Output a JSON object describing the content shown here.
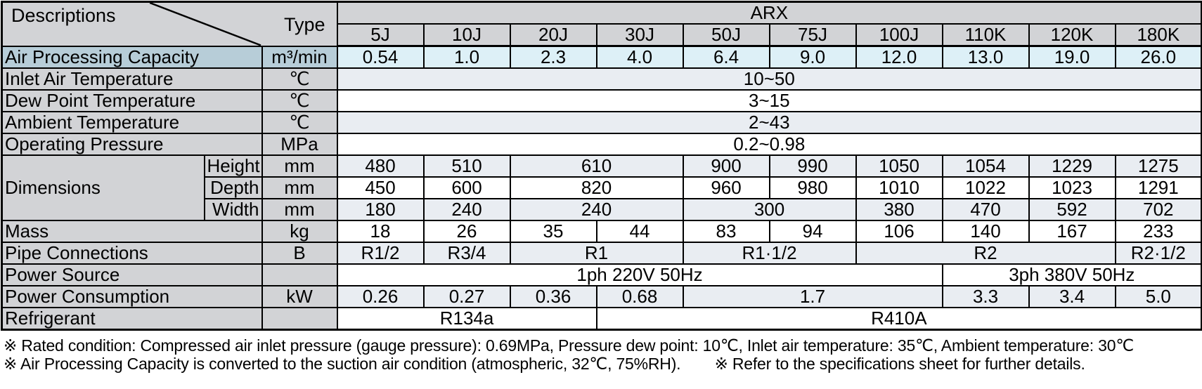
{
  "table": {
    "corner": {
      "row_axis_label": "Descriptions",
      "col_axis_label": "Type"
    },
    "series_header": "ARX",
    "model_columns": [
      "5J",
      "10J",
      "20J",
      "30J",
      "50J",
      "75J",
      "100J",
      "110K",
      "120K",
      "180K"
    ],
    "rows": [
      {
        "name": "row-air-processing-capacity",
        "cells": [
          {
            "t": "Air Processing Capacity",
            "cs": 2,
            "cls": "lbl cap",
            "n": "row-label"
          },
          {
            "t": "m³/min",
            "cls": "unit cap",
            "n": "row-unit"
          },
          {
            "t": "0.54",
            "cls": "d cyan",
            "n": "value-cell"
          },
          {
            "t": "1.0",
            "cls": "d cyan",
            "n": "value-cell"
          },
          {
            "t": "2.3",
            "cls": "d cyan",
            "n": "value-cell"
          },
          {
            "t": "4.0",
            "cls": "d cyan",
            "n": "value-cell"
          },
          {
            "t": "6.4",
            "cls": "d cyan",
            "n": "value-cell"
          },
          {
            "t": "9.0",
            "cls": "d cyan",
            "n": "value-cell"
          },
          {
            "t": "12.0",
            "cls": "d cyan",
            "n": "value-cell"
          },
          {
            "t": "13.0",
            "cls": "d cyan",
            "n": "value-cell"
          },
          {
            "t": "19.0",
            "cls": "d cyan",
            "n": "value-cell"
          },
          {
            "t": "26.0",
            "cls": "d cyan",
            "n": "value-cell"
          }
        ]
      },
      {
        "name": "row-inlet-air-temperature",
        "cells": [
          {
            "t": "Inlet Air Temperature",
            "cs": 2,
            "cls": "lbl",
            "n": "row-label"
          },
          {
            "t": "℃",
            "cls": "unit",
            "n": "row-unit"
          },
          {
            "t": "10~50",
            "cs": 10,
            "cls": "d lite",
            "n": "value-cell"
          }
        ]
      },
      {
        "name": "row-dew-point-temperature",
        "cells": [
          {
            "t": "Dew Point Temperature",
            "cs": 2,
            "cls": "lbl",
            "n": "row-label"
          },
          {
            "t": "℃",
            "cls": "unit",
            "n": "row-unit"
          },
          {
            "t": "3~15",
            "cs": 10,
            "cls": "d white",
            "n": "value-cell"
          }
        ]
      },
      {
        "name": "row-ambient-temperature",
        "cells": [
          {
            "t": "Ambient Temperature",
            "cs": 2,
            "cls": "lbl",
            "n": "row-label"
          },
          {
            "t": "℃",
            "cls": "unit",
            "n": "row-unit"
          },
          {
            "t": "2~43",
            "cs": 10,
            "cls": "d lite",
            "n": "value-cell"
          }
        ]
      },
      {
        "name": "row-operating-pressure",
        "cells": [
          {
            "t": "Operating Pressure",
            "cs": 2,
            "cls": "lbl",
            "n": "row-label"
          },
          {
            "t": "MPa",
            "cls": "unit",
            "n": "row-unit"
          },
          {
            "t": "0.2~0.98",
            "cs": 10,
            "cls": "d white",
            "n": "value-cell"
          }
        ]
      },
      {
        "name": "row-dimensions-height",
        "cells": [
          {
            "t": "Dimensions",
            "rs": 3,
            "cls": "lbl",
            "n": "row-label"
          },
          {
            "t": "Height",
            "cls": "sub",
            "n": "row-sublabel"
          },
          {
            "t": "mm",
            "cls": "unit",
            "n": "row-unit"
          },
          {
            "t": "480",
            "cls": "d lite",
            "n": "value-cell"
          },
          {
            "t": "510",
            "cls": "d lite",
            "n": "value-cell"
          },
          {
            "t": "610",
            "cs": 2,
            "cls": "d lite",
            "n": "value-cell"
          },
          {
            "t": "900",
            "cls": "d lite",
            "n": "value-cell"
          },
          {
            "t": "990",
            "cls": "d lite",
            "n": "value-cell"
          },
          {
            "t": "1050",
            "cls": "d lite",
            "n": "value-cell"
          },
          {
            "t": "1054",
            "cls": "d lite",
            "n": "value-cell"
          },
          {
            "t": "1229",
            "cls": "d lite",
            "n": "value-cell"
          },
          {
            "t": "1275",
            "cls": "d lite",
            "n": "value-cell"
          }
        ]
      },
      {
        "name": "row-dimensions-depth",
        "cells": [
          {
            "t": "Depth",
            "cls": "sub",
            "n": "row-sublabel"
          },
          {
            "t": "mm",
            "cls": "unit",
            "n": "row-unit"
          },
          {
            "t": "450",
            "cls": "d white",
            "n": "value-cell"
          },
          {
            "t": "600",
            "cls": "d white",
            "n": "value-cell"
          },
          {
            "t": "820",
            "cs": 2,
            "cls": "d white",
            "n": "value-cell"
          },
          {
            "t": "960",
            "cls": "d white",
            "n": "value-cell"
          },
          {
            "t": "980",
            "cls": "d white",
            "n": "value-cell"
          },
          {
            "t": "1010",
            "cls": "d white",
            "n": "value-cell"
          },
          {
            "t": "1022",
            "cls": "d white",
            "n": "value-cell"
          },
          {
            "t": "1023",
            "cls": "d white",
            "n": "value-cell"
          },
          {
            "t": "1291",
            "cls": "d white",
            "n": "value-cell"
          }
        ]
      },
      {
        "name": "row-dimensions-width",
        "cells": [
          {
            "t": "Width",
            "cls": "sub",
            "n": "row-sublabel"
          },
          {
            "t": "mm",
            "cls": "unit",
            "n": "row-unit"
          },
          {
            "t": "180",
            "cls": "d lite",
            "n": "value-cell"
          },
          {
            "t": "240",
            "cls": "d lite",
            "n": "value-cell"
          },
          {
            "t": "240",
            "cs": 2,
            "cls": "d lite",
            "n": "value-cell"
          },
          {
            "t": "300",
            "cs": 2,
            "cls": "d lite",
            "n": "value-cell"
          },
          {
            "t": "380",
            "cls": "d lite",
            "n": "value-cell"
          },
          {
            "t": "470",
            "cls": "d lite",
            "n": "value-cell"
          },
          {
            "t": "592",
            "cls": "d lite",
            "n": "value-cell"
          },
          {
            "t": "702",
            "cls": "d lite",
            "n": "value-cell"
          }
        ]
      },
      {
        "name": "row-mass",
        "cells": [
          {
            "t": "Mass",
            "cs": 2,
            "cls": "lbl",
            "n": "row-label"
          },
          {
            "t": "kg",
            "cls": "unit",
            "n": "row-unit"
          },
          {
            "t": "18",
            "cls": "d white",
            "n": "value-cell"
          },
          {
            "t": "26",
            "cls": "d white",
            "n": "value-cell"
          },
          {
            "t": "35",
            "cls": "d white",
            "n": "value-cell"
          },
          {
            "t": "44",
            "cls": "d white",
            "n": "value-cell"
          },
          {
            "t": "83",
            "cls": "d white",
            "n": "value-cell"
          },
          {
            "t": "94",
            "cls": "d white",
            "n": "value-cell"
          },
          {
            "t": "106",
            "cls": "d white",
            "n": "value-cell"
          },
          {
            "t": "140",
            "cls": "d white",
            "n": "value-cell"
          },
          {
            "t": "167",
            "cls": "d white",
            "n": "value-cell"
          },
          {
            "t": "233",
            "cls": "d white",
            "n": "value-cell"
          }
        ]
      },
      {
        "name": "row-pipe-connections",
        "cells": [
          {
            "t": "Pipe Connections",
            "cs": 2,
            "cls": "lbl",
            "n": "row-label"
          },
          {
            "t": "B",
            "cls": "unit",
            "n": "row-unit"
          },
          {
            "t": "R1/2",
            "cls": "d lite",
            "n": "value-cell"
          },
          {
            "t": "R3/4",
            "cls": "d lite",
            "n": "value-cell"
          },
          {
            "t": "R1",
            "cs": 2,
            "cls": "d lite",
            "n": "value-cell"
          },
          {
            "t": "R1·1/2",
            "cs": 2,
            "cls": "d lite",
            "n": "value-cell"
          },
          {
            "t": "R2",
            "cs": 3,
            "cls": "d lite",
            "n": "value-cell"
          },
          {
            "t": "R2·1/2",
            "cls": "d lite",
            "n": "value-cell"
          }
        ]
      },
      {
        "name": "row-power-source",
        "cells": [
          {
            "t": "Power Source",
            "cs": 2,
            "cls": "lbl",
            "n": "row-label"
          },
          {
            "t": "",
            "cls": "unit",
            "n": "row-unit"
          },
          {
            "t": "1ph 220V 50Hz",
            "cs": 7,
            "cls": "d white",
            "n": "value-cell"
          },
          {
            "t": "3ph 380V 50Hz",
            "cs": 3,
            "cls": "d white",
            "n": "value-cell"
          }
        ]
      },
      {
        "name": "row-power-consumption",
        "cells": [
          {
            "t": "Power Consumption",
            "cs": 2,
            "cls": "lbl",
            "n": "row-label"
          },
          {
            "t": "kW",
            "cls": "unit",
            "n": "row-unit"
          },
          {
            "t": "0.26",
            "cls": "d lite",
            "n": "value-cell"
          },
          {
            "t": "0.27",
            "cls": "d lite",
            "n": "value-cell"
          },
          {
            "t": "0.36",
            "cls": "d lite",
            "n": "value-cell"
          },
          {
            "t": "0.68",
            "cls": "d lite",
            "n": "value-cell"
          },
          {
            "t": "1.7",
            "cs": 3,
            "cls": "d lite",
            "n": "value-cell"
          },
          {
            "t": "3.3",
            "cls": "d lite",
            "n": "value-cell"
          },
          {
            "t": "3.4",
            "cls": "d lite",
            "n": "value-cell"
          },
          {
            "t": "5.0",
            "cls": "d lite",
            "n": "value-cell"
          }
        ]
      },
      {
        "name": "row-refrigerant",
        "cells": [
          {
            "t": "Refrigerant",
            "cs": 2,
            "cls": "lbl",
            "n": "row-label"
          },
          {
            "t": "",
            "cls": "unit",
            "n": "row-unit"
          },
          {
            "t": "R134a",
            "cs": 3,
            "cls": "d white",
            "n": "value-cell"
          },
          {
            "t": "R410A",
            "cs": 7,
            "cls": "d white",
            "n": "value-cell"
          }
        ]
      }
    ]
  },
  "footnotes": {
    "line1": "※ Rated condition: Compressed air inlet pressure (gauge pressure): 0.69MPa, Pressure dew point: 10℃,  Inlet air temperature: 35℃, Ambient temperature: 30℃",
    "line2a": "※ Air Processing Capacity is converted to the suction air condition (atmospheric, 32℃, 75%RH).",
    "line2b": "※ Refer to the specifications sheet for further details."
  }
}
